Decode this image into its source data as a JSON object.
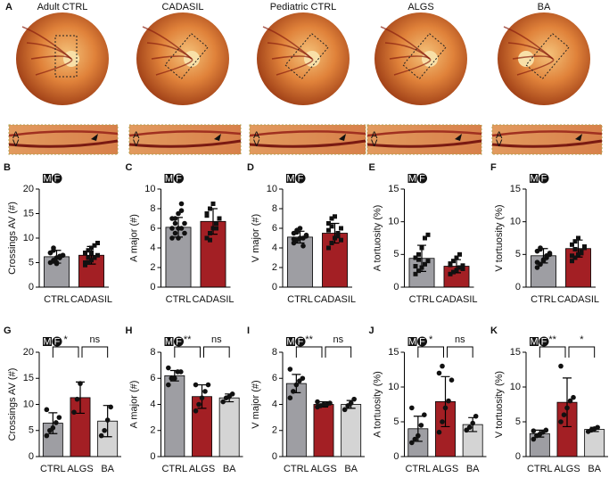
{
  "figure": {
    "panel_label": "A",
    "photos": [
      "Adult CTRL",
      "CADASIL",
      "Pediatric CTRL",
      "ALGS",
      "BA"
    ],
    "inset_labels": [
      "A",
      "V"
    ],
    "sex_icons": [
      "M",
      "F"
    ]
  },
  "chart_data": [
    {
      "type": "bar",
      "label": "B",
      "ylabel": "Crossings AV (#)",
      "categories": [
        "CTRL",
        "CADASIL"
      ],
      "values": [
        6.2,
        6.5
      ],
      "errors": [
        1.3,
        1.8
      ],
      "colors": [
        "#9e9ea3",
        "#a31f24"
      ],
      "markers": [
        "circle",
        "square"
      ],
      "ylim": [
        0,
        20
      ],
      "yticks": [
        0,
        5,
        10,
        15,
        20
      ],
      "points": [
        [
          5,
          5.5,
          6,
          6,
          6.5,
          7,
          7.5,
          5,
          6,
          6.5,
          7,
          8,
          4.8,
          6.3
        ],
        [
          4.5,
          5,
          5.5,
          6,
          6.5,
          7,
          7.5,
          8,
          8.5,
          9,
          5,
          6,
          7
        ]
      ]
    },
    {
      "type": "bar",
      "label": "C",
      "ylabel": "A major (#)",
      "categories": [
        "CTRL",
        "CADASIL"
      ],
      "values": [
        6.1,
        6.7
      ],
      "errors": [
        1.0,
        1.3
      ],
      "colors": [
        "#9e9ea3",
        "#a31f24"
      ],
      "markers": [
        "circle",
        "square"
      ],
      "ylim": [
        0,
        10
      ],
      "yticks": [
        0,
        2,
        4,
        6,
        8,
        10
      ],
      "points": [
        [
          5,
          5.5,
          6,
          6,
          6.5,
          7,
          7,
          7.5,
          8.5,
          5.5,
          6,
          6.5,
          5,
          7.8
        ],
        [
          5,
          5.5,
          6,
          6.5,
          7,
          7.5,
          8,
          8.5,
          6,
          7,
          7.3,
          4.8
        ]
      ]
    },
    {
      "type": "bar",
      "label": "D",
      "ylabel": "V major (#)",
      "categories": [
        "CTRL",
        "CADASIL"
      ],
      "values": [
        5.1,
        5.5
      ],
      "errors": [
        0.6,
        1.0
      ],
      "colors": [
        "#9e9ea3",
        "#a31f24"
      ],
      "markers": [
        "circle",
        "square"
      ],
      "ylim": [
        0,
        10
      ],
      "yticks": [
        0,
        2,
        4,
        6,
        8,
        10
      ],
      "points": [
        [
          4.5,
          4.8,
          5,
          5,
          5.2,
          5.5,
          5.8,
          6,
          4.2,
          5.3,
          4.9,
          5.6
        ],
        [
          4,
          4.5,
          5,
          5.5,
          6,
          6.5,
          7,
          7.2,
          5.2,
          4.8,
          5.8,
          6.2
        ]
      ]
    },
    {
      "type": "bar",
      "label": "E",
      "ylabel": "A tortuosity (%)",
      "categories": [
        "CTRL",
        "CADASIL"
      ],
      "values": [
        4.4,
        3.2
      ],
      "errors": [
        2.0,
        1.0
      ],
      "colors": [
        "#9e9ea3",
        "#a31f24"
      ],
      "markers": [
        "square",
        "square"
      ],
      "ylim": [
        0,
        15
      ],
      "yticks": [
        0,
        5,
        10,
        15
      ],
      "points": [
        [
          2,
          2.5,
          3,
          3.5,
          4,
          4.5,
          5,
          6,
          7.5,
          8,
          3.2,
          4.2
        ],
        [
          2,
          2.3,
          2.6,
          3,
          3.3,
          3.6,
          4,
          4.5,
          5,
          2.8,
          3.4
        ]
      ]
    },
    {
      "type": "bar",
      "label": "F",
      "ylabel": "V tortuosity (%)",
      "categories": [
        "CTRL",
        "CADASIL"
      ],
      "values": [
        4.8,
        5.9
      ],
      "errors": [
        1.1,
        1.3
      ],
      "colors": [
        "#9e9ea3",
        "#a31f24"
      ],
      "markers": [
        "circle",
        "square"
      ],
      "ylim": [
        0,
        15
      ],
      "yticks": [
        0,
        5,
        10,
        15
      ],
      "points": [
        [
          3,
          3.5,
          4,
          4.5,
          5,
          5.5,
          6,
          4.2,
          4.8,
          5.2,
          3.8,
          5.8
        ],
        [
          4,
          4.5,
          5,
          5.5,
          6,
          6.5,
          7,
          7.5,
          5.2,
          6.2,
          4.8,
          5.8
        ]
      ]
    },
    {
      "type": "bar",
      "label": "G",
      "ylabel": "Crossings AV (#)",
      "categories": [
        "CTRL",
        "ALGS",
        "BA"
      ],
      "values": [
        6.4,
        11.3,
        6.8
      ],
      "errors": [
        2.0,
        3.0,
        3.0
      ],
      "colors": [
        "#9e9ea3",
        "#a31f24",
        "#d4d4d4"
      ],
      "markers": [
        "circle",
        "circle",
        "circle"
      ],
      "ylim": [
        0,
        20
      ],
      "yticks": [
        0,
        5,
        10,
        15,
        20
      ],
      "significance": [
        "*",
        "ns"
      ],
      "points": [
        [
          4,
          5,
          5.5,
          6.5,
          7.5,
          9
        ],
        [
          8.5,
          11,
          14
        ],
        [
          4,
          5,
          7,
          9.5
        ]
      ]
    },
    {
      "type": "bar",
      "label": "H",
      "ylabel": "A major (#)",
      "categories": [
        "CTRL",
        "ALGS",
        "BA"
      ],
      "values": [
        6.2,
        4.6,
        4.5
      ],
      "errors": [
        0.4,
        0.9,
        0.3
      ],
      "colors": [
        "#9e9ea3",
        "#a31f24",
        "#d4d4d4"
      ],
      "markers": [
        "circle",
        "circle",
        "circle"
      ],
      "ylim": [
        0,
        8
      ],
      "yticks": [
        0,
        2,
        4,
        6,
        8
      ],
      "significance": [
        "**",
        "ns"
      ],
      "points": [
        [
          5.5,
          6,
          6,
          6.5,
          6.5,
          6.8
        ],
        [
          3.5,
          4,
          4.5,
          5,
          5.5,
          5.5
        ],
        [
          4.2,
          4.5,
          4.6,
          4.8
        ]
      ]
    },
    {
      "type": "bar",
      "label": "I",
      "ylabel": "V major (#)",
      "categories": [
        "CTRL",
        "ALGS",
        "BA"
      ],
      "values": [
        5.6,
        4.0,
        4.0
      ],
      "errors": [
        0.7,
        0.2,
        0.3
      ],
      "colors": [
        "#9e9ea3",
        "#a31f24",
        "#d4d4d4"
      ],
      "markers": [
        "circle",
        "circle",
        "circle"
      ],
      "ylim": [
        0,
        8
      ],
      "yticks": [
        0,
        2,
        4,
        6,
        8
      ],
      "significance": [
        "**",
        "ns"
      ],
      "points": [
        [
          4.5,
          5,
          5.5,
          5.8,
          6,
          6.7
        ],
        [
          3.8,
          3.9,
          4,
          4,
          4.1,
          4.2
        ],
        [
          3.6,
          3.9,
          4.1,
          4.4
        ]
      ]
    },
    {
      "type": "bar",
      "label": "J",
      "ylabel": "A tortuosity (%)",
      "categories": [
        "CTRL",
        "ALGS",
        "BA"
      ],
      "values": [
        4.0,
        7.9,
        4.6
      ],
      "errors": [
        1.8,
        3.6,
        1.0
      ],
      "colors": [
        "#9e9ea3",
        "#a31f24",
        "#d4d4d4"
      ],
      "markers": [
        "circle",
        "circle",
        "circle"
      ],
      "ylim": [
        0,
        15
      ],
      "yticks": [
        0,
        5,
        10,
        15
      ],
      "significance": [
        "*",
        "ns"
      ],
      "points": [
        [
          2,
          2.5,
          3,
          4.5,
          6,
          7
        ],
        [
          3.5,
          5,
          7,
          8,
          11,
          12,
          13
        ],
        [
          3.8,
          4.2,
          4.8,
          5.8
        ]
      ]
    },
    {
      "type": "bar",
      "label": "K",
      "ylabel": "V tortuosity (%)",
      "categories": [
        "CTRL",
        "ALGS",
        "BA"
      ],
      "values": [
        3.3,
        7.8,
        3.9
      ],
      "errors": [
        0.5,
        3.5,
        0.3
      ],
      "colors": [
        "#9e9ea3",
        "#a31f24",
        "#d4d4d4"
      ],
      "markers": [
        "circle",
        "circle",
        "circle"
      ],
      "ylim": [
        0,
        15
      ],
      "yticks": [
        0,
        5,
        10,
        15
      ],
      "significance": [
        "**",
        "*"
      ],
      "points": [
        [
          2.5,
          3,
          3.2,
          3.5,
          3.8,
          3.7
        ],
        [
          5,
          6,
          7,
          8,
          8.5,
          13
        ],
        [
          3.6,
          3.8,
          4,
          4.2
        ]
      ]
    }
  ]
}
